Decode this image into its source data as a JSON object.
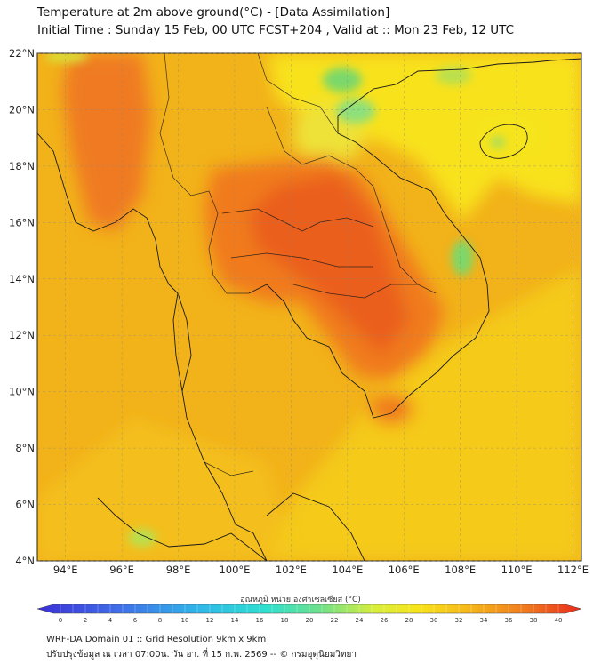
{
  "header": {
    "title_line1": "Temperature at 2m above ground(°C) - [Data Assimilation]",
    "title_line2": "Initial Time : Sunday 15 Feb, 00 UTC FCST+204 , Valid at :: Mon 23 Feb, 12 UTC"
  },
  "map": {
    "lat_labels": [
      "22°N",
      "20°N",
      "18°N",
      "16°N",
      "14°N",
      "12°N",
      "10°N",
      "8°N",
      "6°N",
      "4°N"
    ],
    "lon_labels": [
      "94°E",
      "96°E",
      "98°E",
      "100°E",
      "102°E",
      "104°E",
      "106°E",
      "108°E",
      "110°E",
      "112°E"
    ],
    "lat_range": [
      4,
      22
    ],
    "lon_range": [
      93,
      112.3
    ],
    "colors": {
      "background": "#f2b21a",
      "hot": "#f07a1e",
      "hottest": "#ea5e1c",
      "mild": "#f8e21a",
      "cool": "#7cd86a",
      "border": "#1a1a1a",
      "grid": "#888888"
    }
  },
  "colorbar": {
    "label": "อุณหภูมิ หน่วย องศาเซลเซียส (°C)",
    "ticks": [
      "0",
      "2",
      "4",
      "6",
      "8",
      "10",
      "12",
      "14",
      "16",
      "18",
      "20",
      "22",
      "24",
      "26",
      "28",
      "30",
      "32",
      "34",
      "36",
      "38",
      "40"
    ],
    "range": [
      0,
      40
    ]
  },
  "footer": {
    "line1": "WRF-DA Domain 01 :: Grid Resolution 9km x 9km",
    "line2": "ปรับปรุงข้อมูล ณ เวลา 07:00น. วัน อา. ที่ 15 ก.พ. 2569 -- © กรมอุตุนิยมวิทยา"
  }
}
